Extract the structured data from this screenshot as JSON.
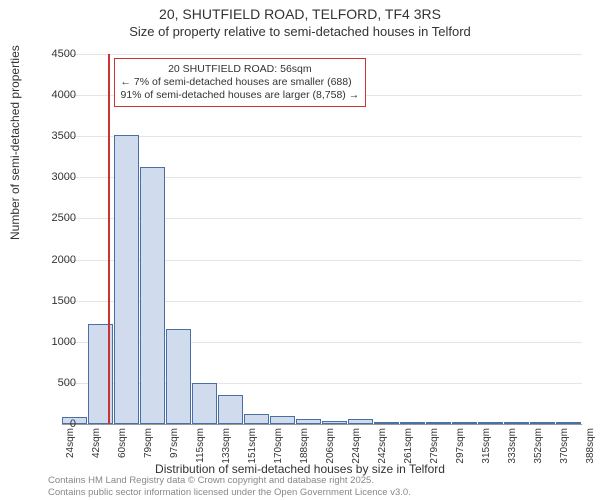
{
  "title_line1": "20, SHUTFIELD ROAD, TELFORD, TF4 3RS",
  "title_line2": "Size of property relative to semi-detached houses in Telford",
  "ylabel": "Number of semi-detached properties",
  "xlabel": "Distribution of semi-detached houses by size in Telford",
  "footer_line1": "Contains HM Land Registry data © Crown copyright and database right 2025.",
  "footer_line2": "Contains public sector information licensed under the Open Government Licence v3.0.",
  "chart": {
    "type": "histogram",
    "ylim": [
      0,
      4500
    ],
    "ytick_step": 500,
    "bar_fill": "#d0dbee",
    "bar_stroke": "#4a6fa5",
    "grid_color": "#e5e5e5",
    "background_color": "#ffffff",
    "refline_color": "#cc3333",
    "annotation_border": "#cc3333",
    "xtick_labels": [
      "24sqm",
      "42sqm",
      "60sqm",
      "79sqm",
      "97sqm",
      "115sqm",
      "133sqm",
      "151sqm",
      "170sqm",
      "188sqm",
      "206sqm",
      "224sqm",
      "242sqm",
      "261sqm",
      "279sqm",
      "297sqm",
      "315sqm",
      "333sqm",
      "352sqm",
      "370sqm",
      "388sqm"
    ],
    "bars": [
      80,
      1220,
      3520,
      3120,
      1160,
      500,
      350,
      120,
      100,
      60,
      40,
      60,
      0,
      0,
      0,
      0,
      0,
      0,
      0,
      0
    ],
    "refline_index": 1.75,
    "annotation": {
      "line1": "20 SHUTFIELD ROAD: 56sqm",
      "line2": "← 7% of semi-detached houses are smaller (688)",
      "line3": "91% of semi-detached houses are larger (8,758) →"
    }
  }
}
